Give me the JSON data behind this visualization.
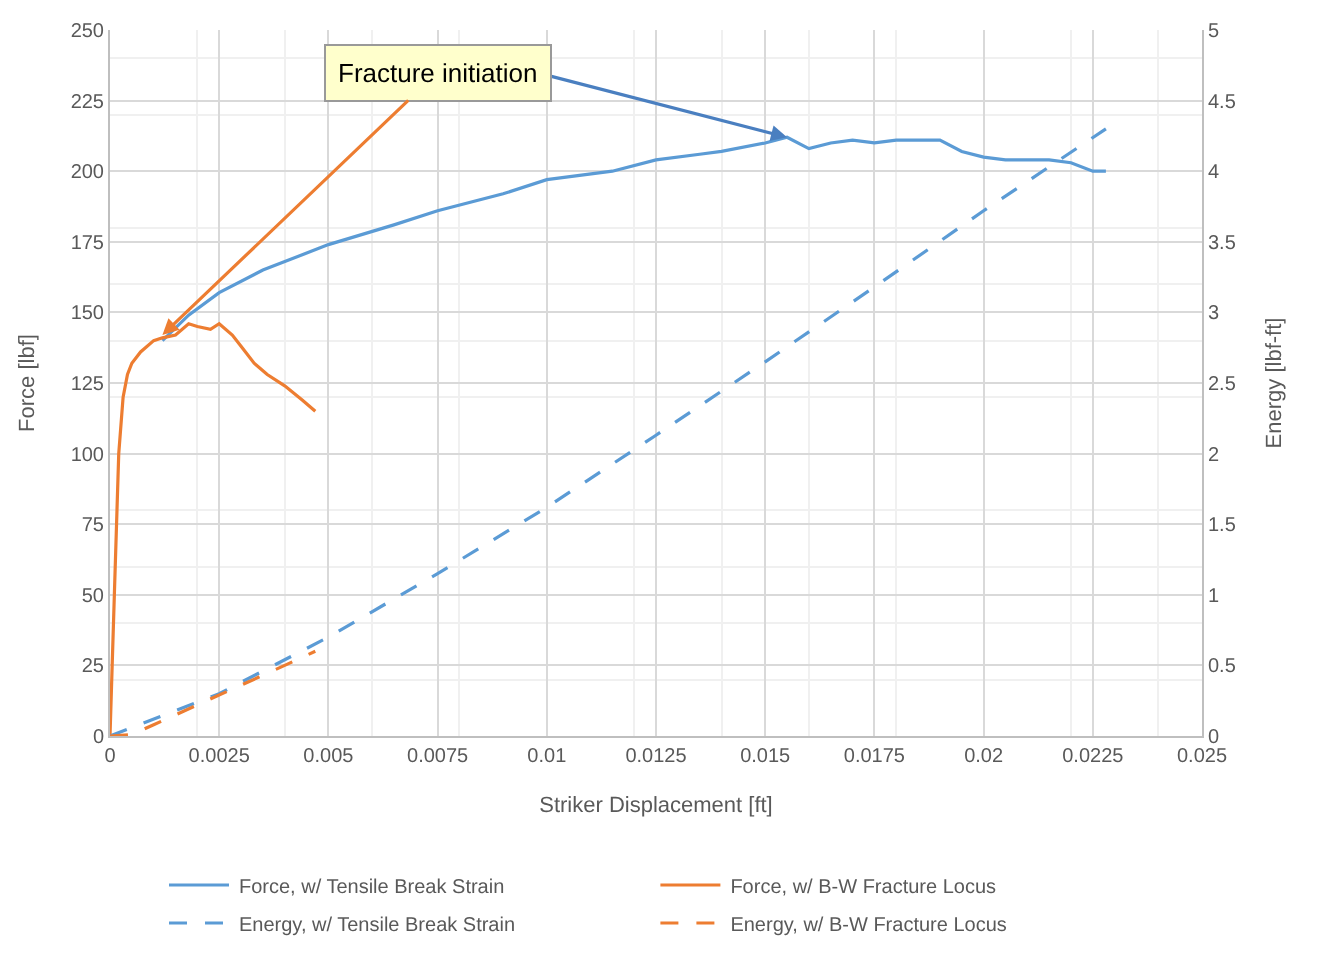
{
  "chart_data": {
    "type": "line",
    "xlabel": "Striker Displacement [ft]",
    "ylabel": "Force [lbf]",
    "y2label": "Energy [lbf-ft]",
    "xlim": [
      0,
      0.025
    ],
    "xticks": [
      0,
      0.0025,
      0.005,
      0.0075,
      0.01,
      0.0125,
      0.015,
      0.0175,
      0.02,
      0.0225,
      0.025
    ],
    "ylim": [
      0,
      250
    ],
    "yticks": [
      0,
      25,
      50,
      75,
      100,
      125,
      150,
      175,
      200,
      225,
      250
    ],
    "y2lim": [
      0,
      5
    ],
    "y2ticks": [
      0,
      0.5,
      1,
      1.5,
      2,
      2.5,
      3,
      3.5,
      4,
      4.5,
      5
    ],
    "grid": true,
    "legend": "bottom",
    "marker": "none",
    "annotations": [
      {
        "text": "Fracture initiation",
        "x": 0.0012,
        "y": 142
      }
    ],
    "series": [
      {
        "name": "Force, w/ Tensile Break Strain",
        "color": "#5b9bd5",
        "line_style": "solid",
        "x": [
          0.0012,
          0.0018,
          0.0025,
          0.0035,
          0.005,
          0.0065,
          0.0075,
          0.009,
          0.01,
          0.0115,
          0.0125,
          0.0135,
          0.014,
          0.015,
          0.0155,
          0.016,
          0.0165,
          0.017,
          0.0175,
          0.018,
          0.019,
          0.0195,
          0.02,
          0.0205,
          0.0215,
          0.022,
          0.0225,
          0.0228
        ],
        "values": [
          140,
          149,
          157,
          165,
          174,
          181,
          186,
          192,
          197,
          200,
          204,
          206,
          207,
          210,
          212,
          208,
          210,
          211,
          210,
          211,
          211,
          207,
          205,
          204,
          204,
          203,
          200,
          200
        ]
      },
      {
        "name": "Force, w/ B-W Fracture Locus",
        "color": "#ed7d31",
        "line_style": "solid",
        "x": [
          0,
          0.0001,
          0.0002,
          0.0003,
          0.0004,
          0.0005,
          0.0007,
          0.001,
          0.0012,
          0.0015,
          0.0018,
          0.002,
          0.0023,
          0.0025,
          0.0028,
          0.003,
          0.0033,
          0.0036,
          0.004,
          0.0044,
          0.0047
        ],
        "values": [
          0,
          50,
          100,
          120,
          128,
          132,
          136,
          140,
          141,
          142,
          146,
          145,
          144,
          146,
          142,
          138,
          132,
          128,
          124,
          119,
          115
        ]
      },
      {
        "name": "Energy, w/ Tensile Break Strain",
        "color": "#5b9bd5",
        "line_style": "dashed",
        "axis": "y2",
        "x": [
          0,
          0.0025,
          0.005,
          0.0075,
          0.01,
          0.0125,
          0.015,
          0.0175,
          0.02,
          0.0228
        ],
        "values": [
          0,
          0.3,
          0.7,
          1.15,
          1.62,
          2.13,
          2.65,
          3.18,
          3.72,
          4.3
        ]
      },
      {
        "name": "Energy, w/ B-W Fracture Locus",
        "color": "#ed7d31",
        "line_style": "dashed",
        "axis": "y2",
        "x": [
          0,
          0.0005,
          0.001,
          0.002,
          0.003,
          0.004,
          0.0047
        ],
        "values": [
          0,
          0.01,
          0.08,
          0.22,
          0.36,
          0.5,
          0.6
        ]
      }
    ]
  }
}
